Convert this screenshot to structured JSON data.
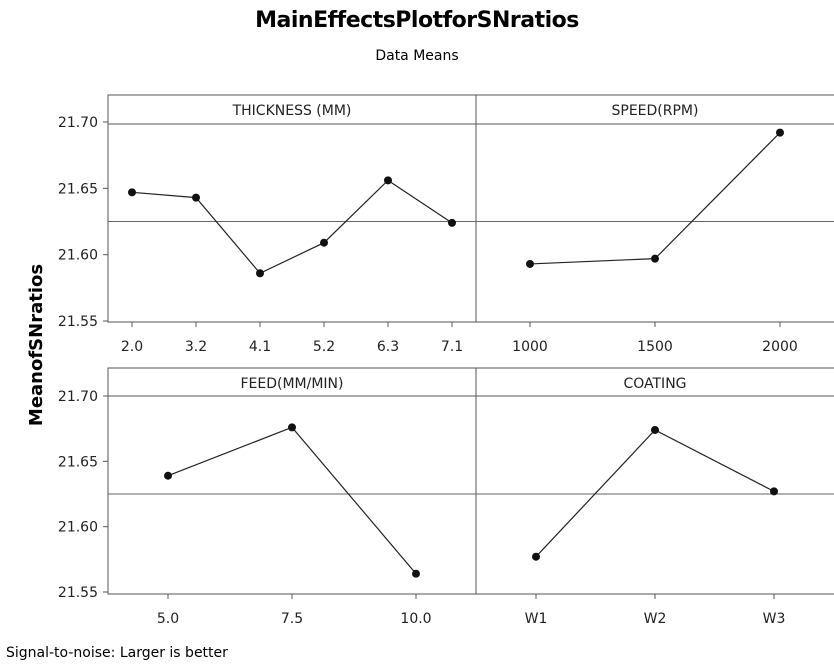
{
  "title": "MainEffectsPlotforSNratios",
  "subtitle": "Data Means",
  "footnote": "Signal-to-noise: Larger is better",
  "chart_data": {
    "type": "line",
    "ylabel": "MeanofSNratios",
    "ylim": [
      21.55,
      21.7
    ],
    "yticks": [
      "21.55",
      "21.60",
      "21.65",
      "21.70"
    ],
    "reference_line": 21.625,
    "grid": false,
    "panels": [
      {
        "name": "THICKNESS (MM)",
        "categories": [
          "2.0",
          "3.2",
          "4.1",
          "5.2",
          "6.3",
          "7.1"
        ],
        "values": [
          21.647,
          21.643,
          21.586,
          21.609,
          21.656,
          21.624
        ]
      },
      {
        "name": "SPEED(RPM)",
        "categories": [
          "1000",
          "1500",
          "2000"
        ],
        "values": [
          21.593,
          21.597,
          21.692
        ]
      },
      {
        "name": "FEED(MM/MIN)",
        "categories": [
          "5.0",
          "7.5",
          "10.0"
        ],
        "values": [
          21.639,
          21.676,
          21.564
        ]
      },
      {
        "name": "COATING",
        "categories": [
          "W1",
          "W2",
          "W3"
        ],
        "values": [
          21.577,
          21.674,
          21.627
        ]
      }
    ]
  }
}
